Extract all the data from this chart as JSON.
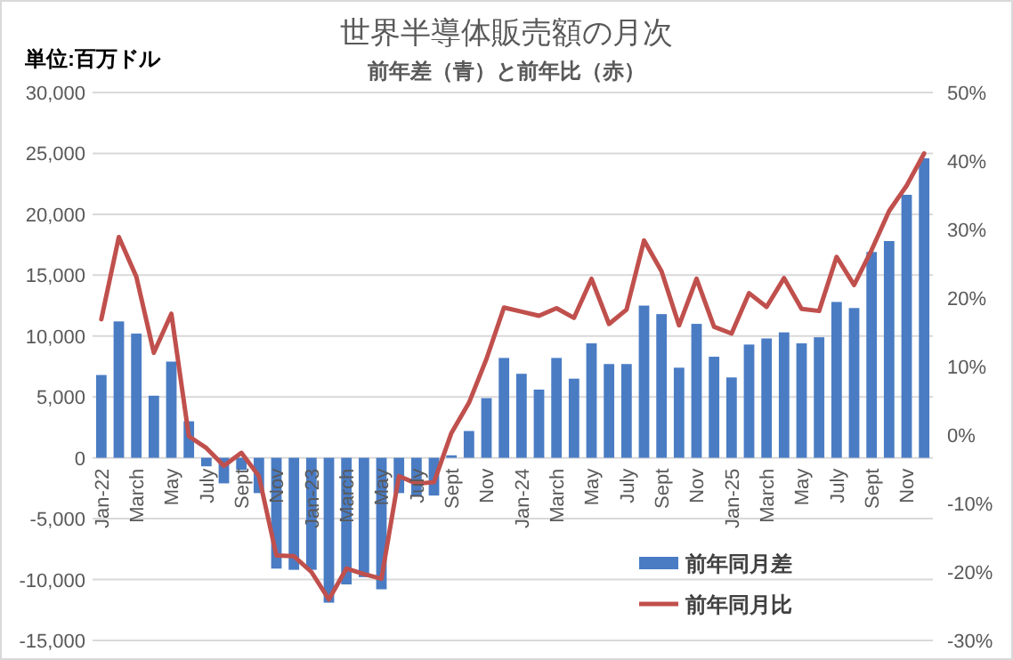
{
  "chart_data": {
    "type": "bar",
    "title": "世界半導体販売額の月次",
    "subtitle": "前年差（青）と前年比（赤）",
    "annotations": [
      "単位:百万ドル"
    ],
    "categories": [
      "Jan-22",
      null,
      "March",
      null,
      "May",
      null,
      "July",
      null,
      "Sept",
      null,
      "Nov",
      null,
      "Jan-23",
      null,
      "March",
      null,
      "May",
      null,
      "July",
      null,
      "Sept",
      null,
      "Nov",
      null,
      "Jan-24",
      null,
      "March",
      null,
      "May",
      null,
      "July",
      null,
      "Sept",
      null,
      "Nov",
      null,
      "Jan-25",
      null,
      "March",
      null,
      "May",
      null,
      "July",
      null,
      "Sept",
      null,
      "Nov",
      null
    ],
    "series": [
      {
        "name": "前年同月差",
        "color": "#4a7cc4",
        "values": [
          6800,
          11200,
          10200,
          5100,
          7900,
          3000,
          -700,
          -2100,
          -1000,
          -2900,
          -9100,
          -9200,
          -9200,
          -11900,
          -10400,
          -9800,
          -10800,
          -2900,
          -3100,
          -3100,
          200,
          2200,
          4900,
          8200,
          6900,
          5600,
          8200,
          6500,
          9400,
          7700,
          7700,
          12500,
          11800,
          7400,
          11000,
          8300,
          6600,
          9300,
          9800,
          10300,
          9400,
          9900,
          12800,
          12300,
          16900,
          17800,
          21600,
          24600
        ]
      },
      {
        "name": "前年同月比",
        "type": "line",
        "axis": "y2",
        "color": "#c0504d",
        "values": [
          16.9,
          28.9,
          23.1,
          12.0,
          17.7,
          -0.2,
          -1.9,
          -4.5,
          -2.6,
          -6.0,
          -17.6,
          -17.7,
          -20.0,
          -24.0,
          -19.5,
          -20.3,
          -21.0,
          -6.0,
          -7.1,
          -6.9,
          0.3,
          4.7,
          11.1,
          18.6,
          18.0,
          17.4,
          18.5,
          17.1,
          22.8,
          16.2,
          18.3,
          28.4,
          23.9,
          16.0,
          22.8,
          15.8,
          14.8,
          20.7,
          18.7,
          22.9,
          18.4,
          18.1,
          26.0,
          21.9,
          27.0,
          32.7,
          36.4,
          41.1
        ]
      }
    ],
    "ylim": [
      -15000,
      30000
    ],
    "yticks": [
      {
        "value": -15000,
        "label": "-15,000"
      },
      {
        "value": -10000,
        "label": "-10,000"
      },
      {
        "value": -5000,
        "label": "-5,000"
      },
      0,
      {
        "value": 5000,
        "label": "5,000"
      },
      {
        "value": 10000,
        "label": "10,000"
      },
      {
        "value": 15000,
        "label": "15,000"
      },
      {
        "value": 20000,
        "label": "20,000"
      },
      {
        "value": 25000,
        "label": "25,000"
      },
      {
        "value": 30000,
        "label": "30,000"
      }
    ],
    "y2lim": [
      -30,
      50
    ],
    "y2ticks": [
      {
        "value": -30,
        "label": "-30%"
      },
      {
        "value": -20,
        "label": "-20%"
      },
      {
        "value": -10,
        "label": "-10%"
      },
      {
        "value": 0,
        "label": "0%"
      },
      {
        "value": 10,
        "label": "10%"
      },
      {
        "value": 20,
        "label": "20%"
      },
      {
        "value": 30,
        "label": "30%"
      },
      {
        "value": 40,
        "label": "40%"
      },
      {
        "value": 50,
        "label": "50%"
      }
    ],
    "grid": "y",
    "legend": "bottom right"
  }
}
